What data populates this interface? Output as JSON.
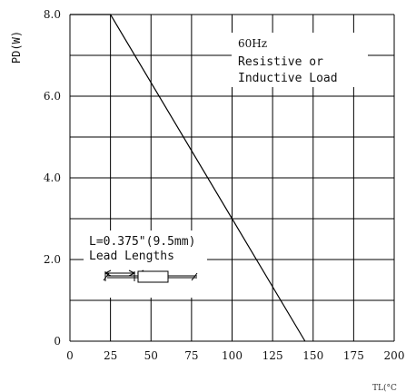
{
  "chart_data": {
    "type": "line",
    "title": "",
    "xlabel": "TL(°C",
    "ylabel": "PD(W)",
    "xlim": [
      0,
      200
    ],
    "ylim": [
      0,
      8
    ],
    "x_ticks": [
      "0",
      "25",
      "50",
      "75",
      "100",
      "125",
      "150",
      "175",
      "200"
    ],
    "y_ticks": [
      "0",
      "2.0",
      "4.0",
      "6.0",
      "8.0"
    ],
    "grid": true,
    "series": [
      {
        "x": [
          0,
          25,
          145
        ],
        "y": [
          8.0,
          8.0,
          0
        ]
      }
    ],
    "annotations": {
      "frequency": "60Hz",
      "load_line1": "Resistive or",
      "load_line2": "Inductive Load",
      "lead_line1": "L=0.375\"(9.5mm)",
      "lead_line2": "Lead Lengths"
    }
  }
}
